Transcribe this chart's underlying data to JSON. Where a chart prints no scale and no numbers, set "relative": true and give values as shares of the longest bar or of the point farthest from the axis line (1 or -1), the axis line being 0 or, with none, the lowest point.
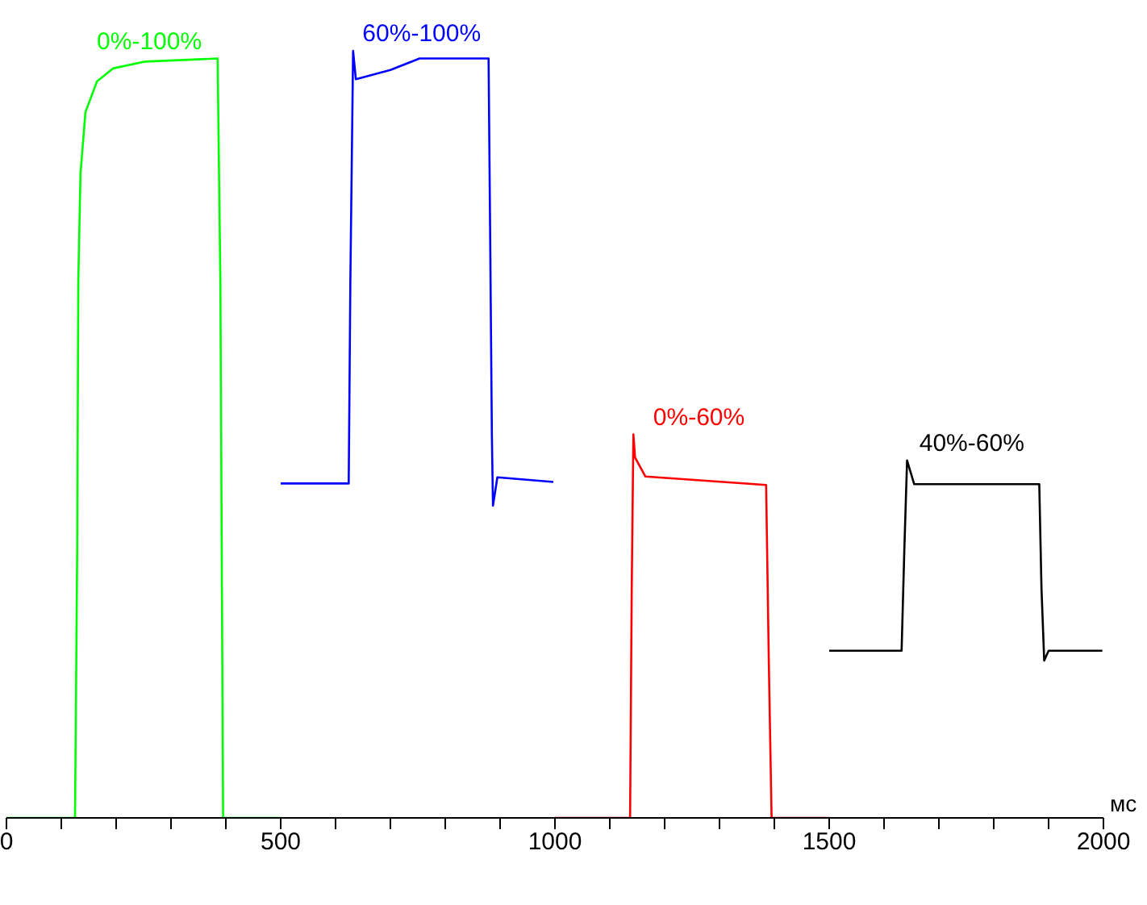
{
  "chart_data": {
    "type": "line",
    "relative": true,
    "xlabel": "мс",
    "xlim": [
      0,
      2000
    ],
    "xticks": [
      0,
      {
        "value": 100,
        "label": null
      },
      {
        "value": 200,
        "label": null
      },
      {
        "value": 300,
        "label": null
      },
      {
        "value": 400,
        "label": null
      },
      500,
      {
        "value": 600,
        "label": null
      },
      {
        "value": 700,
        "label": null
      },
      {
        "value": 800,
        "label": null
      },
      {
        "value": 900,
        "label": null
      },
      1000,
      {
        "value": 1100,
        "label": null
      },
      {
        "value": 1200,
        "label": null
      },
      {
        "value": 1300,
        "label": null
      },
      {
        "value": 1400,
        "label": null
      },
      1500,
      {
        "value": 1600,
        "label": null
      },
      {
        "value": 1700,
        "label": null
      },
      {
        "value": 1800,
        "label": null
      },
      {
        "value": 1900,
        "label": null
      },
      2000
    ],
    "grid": false,
    "legend": false,
    "marker": "none",
    "line_style": "solid",
    "series": [
      {
        "name": "0%-100%",
        "color": "#00ff00",
        "x": [
          0,
          125,
          129,
          131,
          135,
          144,
          165,
          194,
          253,
          385,
          390,
          395,
          500
        ],
        "values": [
          0,
          0,
          0.35,
          0.7,
          0.84,
          0.92,
          0.96,
          0.977,
          0.986,
          0.99,
          0.7,
          0,
          0
        ]
      },
      {
        "name": "60%-100%",
        "color": "#0000ff",
        "x": [
          500,
          624,
          627,
          632,
          637,
          700,
          753,
          879,
          882,
          885,
          887,
          895,
          997
        ],
        "values": [
          0.436,
          0.436,
          0.7,
          1,
          0.963,
          0.975,
          0.99,
          0.99,
          0.75,
          0.5,
          0.407,
          0.444,
          0.438
        ]
      },
      {
        "name": "0%-60%",
        "color": "#ff0000",
        "x": [
          1000,
          1137,
          1140,
          1143,
          1146,
          1165,
          1385,
          1390,
          1395,
          1500
        ],
        "values": [
          0,
          0,
          0.3,
          0.5,
          0.47,
          0.445,
          0.434,
          0.2,
          0,
          0
        ]
      },
      {
        "name": "40%-60%",
        "color": "#000000",
        "x": [
          1500,
          1632,
          1637,
          1642,
          1655,
          1883,
          1887,
          1892,
          1900,
          1998
        ],
        "values": [
          0.218,
          0.218,
          0.35,
          0.466,
          0.435,
          0.435,
          0.3,
          0.205,
          0.218,
          0.218
        ]
      }
    ]
  }
}
